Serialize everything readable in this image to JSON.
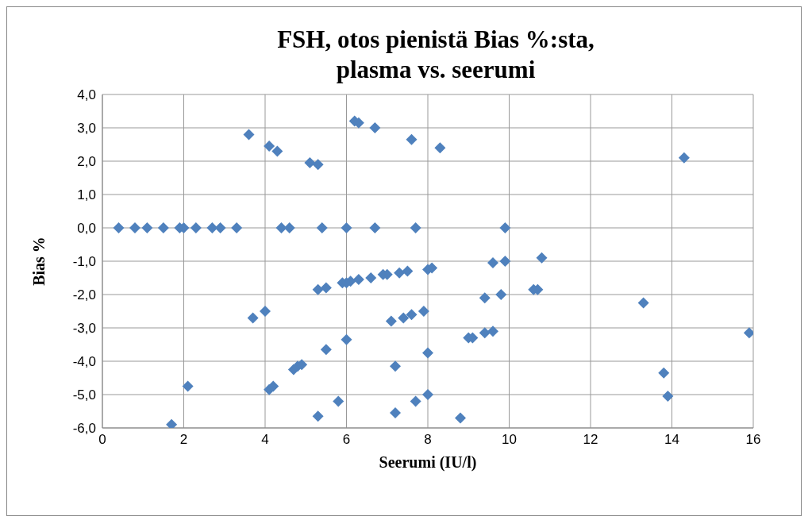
{
  "chart_data": {
    "type": "scatter",
    "title": "FSH, otos pienistä Bias %:sta, plasma vs. seerumi",
    "xlabel": "Seerumi (IU/l)",
    "ylabel": "Bias %",
    "marker": "diamond",
    "grid": true,
    "xlim": [
      0,
      16
    ],
    "xticks": [
      0,
      2,
      4,
      6,
      8,
      10,
      12,
      14,
      16
    ],
    "ylim": [
      -6,
      4
    ],
    "yticks": [
      {
        "value": -6,
        "label": "-6,0"
      },
      {
        "value": -5,
        "label": "-5,0"
      },
      {
        "value": -4,
        "label": "-4,0"
      },
      {
        "value": -3,
        "label": "-3,0"
      },
      {
        "value": -2,
        "label": "-2,0"
      },
      {
        "value": -1,
        "label": "-1,0"
      },
      {
        "value": 0,
        "label": "0,0"
      },
      {
        "value": 1,
        "label": "1,0"
      },
      {
        "value": 2,
        "label": "2,0"
      },
      {
        "value": 3,
        "label": "3,0"
      },
      {
        "value": 4,
        "label": "4,0"
      }
    ],
    "series": [
      {
        "color": "#4f81bd",
        "x": [
          0.4,
          0.8,
          1.1,
          1.5,
          1.9,
          2.0,
          2.3,
          2.7,
          2.9,
          3.3,
          4.4,
          4.6,
          5.4,
          6.0,
          6.7,
          7.7,
          9.9,
          3.6,
          4.1,
          4.3,
          5.1,
          5.3,
          6.2,
          6.3,
          6.7,
          7.6,
          8.3,
          14.3,
          5.3,
          5.5,
          5.9,
          6.0,
          6.1,
          6.3,
          6.6,
          6.9,
          7.0,
          7.3,
          7.5,
          8.0,
          8.1,
          9.6,
          9.9,
          10.8,
          10.6,
          10.7,
          9.4,
          9.8,
          13.3,
          3.7,
          4.0,
          7.1,
          7.4,
          7.6,
          7.9,
          9.0,
          9.1,
          9.4,
          9.6,
          6.0,
          15.9,
          5.5,
          8.0,
          7.2,
          4.7,
          4.8,
          4.9,
          2.1,
          4.1,
          4.2,
          13.8,
          13.9,
          8.0,
          7.7,
          5.8,
          7.2,
          5.3,
          8.8,
          1.7
        ],
        "values": [
          0,
          0,
          0,
          0,
          0,
          0,
          0,
          0,
          0,
          0,
          0,
          0,
          0,
          0,
          0,
          0,
          0,
          2.8,
          2.45,
          2.3,
          1.95,
          1.9,
          3.2,
          3.15,
          3.0,
          2.65,
          2.4,
          2.1,
          -1.85,
          -1.8,
          -1.65,
          -1.65,
          -1.6,
          -1.55,
          -1.5,
          -1.4,
          -1.4,
          -1.35,
          -1.3,
          -1.25,
          -1.2,
          -1.05,
          -1.0,
          -0.9,
          -1.85,
          -1.85,
          -2.1,
          -2.0,
          -2.25,
          -2.7,
          -2.5,
          -2.8,
          -2.7,
          -2.6,
          -2.5,
          -3.3,
          -3.3,
          -3.15,
          -3.1,
          -3.35,
          -3.15,
          -3.65,
          -3.75,
          -4.15,
          -4.25,
          -4.15,
          -4.1,
          -4.75,
          -4.85,
          -4.75,
          -4.35,
          -5.05,
          -5.0,
          -5.2,
          -5.2,
          -5.55,
          -5.65,
          -5.7,
          -5.9
        ]
      }
    ]
  }
}
